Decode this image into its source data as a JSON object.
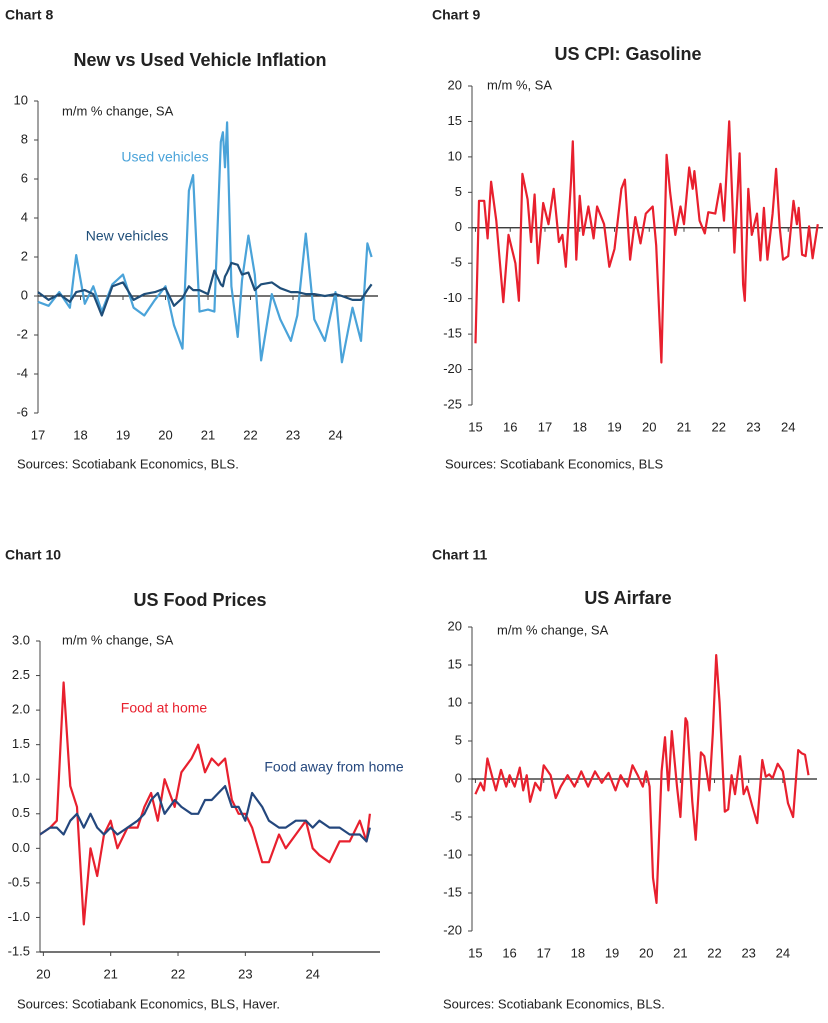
{
  "chart_data": [
    {
      "type": "line",
      "label": "Chart 8",
      "title": "New vs Used Vehicle Inflation",
      "y_label": "m/m % change, SA",
      "source": "Sources: Scotiabank Economics, BLS.",
      "x": [
        17.0,
        17.25,
        17.5,
        17.75,
        17.9,
        18.1,
        18.3,
        18.5,
        18.75,
        19.0,
        19.25,
        19.5,
        19.75,
        20.0,
        20.2,
        20.4,
        20.55,
        20.65,
        20.8,
        21.0,
        21.15,
        21.3,
        21.35,
        21.4,
        21.45,
        21.55,
        21.7,
        21.8,
        21.95,
        22.1,
        22.25,
        22.5,
        22.7,
        22.95,
        23.1,
        23.3,
        23.5,
        23.75,
        24.0,
        24.15,
        24.4,
        24.6,
        24.75,
        24.85
      ],
      "series": [
        {
          "name": "Used vehicles",
          "color": "#4aa3d9",
          "values": [
            -0.3,
            -0.5,
            0.2,
            -0.6,
            2.1,
            -0.4,
            0.5,
            -0.8,
            0.6,
            1.1,
            -0.6,
            -1.0,
            -0.2,
            0.5,
            -1.5,
            -2.7,
            5.4,
            6.2,
            -0.8,
            -0.7,
            -0.8,
            7.9,
            8.4,
            6.6,
            8.9,
            0.5,
            -2.1,
            0.8,
            3.1,
            1.1,
            -3.3,
            0.1,
            -1.2,
            -2.3,
            -1.0,
            3.2,
            -1.2,
            -2.3,
            0.2,
            -3.4,
            -0.6,
            -2.3,
            2.7,
            2.0
          ]
        },
        {
          "name": "New vehicles",
          "color": "#1f4e79",
          "values": [
            0.2,
            -0.2,
            0.1,
            -0.3,
            0.2,
            0.3,
            0.1,
            -1.0,
            0.5,
            0.7,
            -0.2,
            0.1,
            0.2,
            0.4,
            -0.5,
            -0.1,
            0.5,
            0.3,
            0.3,
            0.1,
            1.3,
            0.6,
            0.5,
            1.0,
            1.2,
            1.7,
            1.6,
            1.1,
            1.2,
            0.3,
            0.6,
            0.7,
            0.4,
            0.2,
            0.2,
            0.1,
            0.1,
            0.0,
            0.1,
            0.0,
            -0.2,
            -0.2,
            0.3,
            0.6
          ]
        }
      ],
      "xlim": [
        17,
        25
      ],
      "xticks": [
        17,
        18,
        19,
        20,
        21,
        22,
        23,
        24
      ],
      "ylim": [
        -6,
        10
      ],
      "yticks": [
        -6,
        -4,
        -2,
        0,
        2,
        4,
        6,
        8,
        10
      ],
      "zero_line": true
    },
    {
      "type": "line",
      "label": "Chart 9",
      "title": "US CPI: Gasoline",
      "y_label": "m/m %, SA",
      "source": "Sources: Scotiabank Economics, BLS",
      "x": [
        15.0,
        15.1,
        15.25,
        15.35,
        15.45,
        15.6,
        15.8,
        15.95,
        16.15,
        16.25,
        16.35,
        16.5,
        16.6,
        16.7,
        16.8,
        16.95,
        17.1,
        17.25,
        17.4,
        17.5,
        17.6,
        17.75,
        17.8,
        17.9,
        18.0,
        18.1,
        18.25,
        18.4,
        18.5,
        18.7,
        18.85,
        19.0,
        19.2,
        19.3,
        19.45,
        19.6,
        19.75,
        19.9,
        20.1,
        20.2,
        20.35,
        20.5,
        20.6,
        20.75,
        20.9,
        21.0,
        21.15,
        21.25,
        21.3,
        21.45,
        21.6,
        21.7,
        21.9,
        22.05,
        22.15,
        22.3,
        22.45,
        22.6,
        22.7,
        22.75,
        22.85,
        22.95,
        23.1,
        23.2,
        23.3,
        23.4,
        23.55,
        23.65,
        23.75,
        23.85,
        24.0,
        24.15,
        24.25,
        24.3,
        24.4,
        24.5,
        24.6,
        24.7,
        24.85
      ],
      "series": [
        {
          "name": "Gasoline",
          "color": "#e8202e",
          "values": [
            -16.3,
            3.8,
            3.8,
            -1.5,
            6.5,
            1.0,
            -10.5,
            -1.0,
            -5.0,
            -10.3,
            7.6,
            4.0,
            -2.0,
            4.7,
            -5.0,
            3.5,
            0.5,
            5.5,
            -2.0,
            -1.0,
            -5.5,
            6.5,
            12.2,
            -4.5,
            4.5,
            -1.0,
            3.0,
            -1.5,
            3.0,
            0.5,
            -5.5,
            -3.0,
            5.5,
            6.8,
            -4.5,
            1.5,
            -2.2,
            2.0,
            3.0,
            -2.5,
            -19.0,
            10.3,
            5.0,
            -1.0,
            3.0,
            0.5,
            8.5,
            5.5,
            8.0,
            1.0,
            -0.8,
            2.2,
            2.0,
            6.2,
            1.0,
            15.0,
            -3.5,
            10.5,
            -8.0,
            -10.3,
            5.5,
            -1.0,
            2.0,
            -4.6,
            2.8,
            -4.5,
            2.0,
            8.3,
            0.2,
            -4.5,
            -4.0,
            3.8,
            0.5,
            2.8,
            -3.8,
            -4.0,
            0.2,
            -4.3,
            0.5
          ]
        }
      ],
      "xlim": [
        14.9,
        25
      ],
      "xticks": [
        15,
        16,
        17,
        18,
        19,
        20,
        21,
        22,
        23,
        24
      ],
      "ylim": [
        -25,
        20
      ],
      "yticks": [
        -25,
        -20,
        -15,
        -10,
        -5,
        0,
        5,
        10,
        15,
        20
      ],
      "zero_line": true
    },
    {
      "type": "line",
      "label": "Chart 10",
      "title": "US Food Prices",
      "y_label": "m/m % change, SA",
      "source": "Sources: Scotiabank Economics, BLS, Haver.",
      "x": [
        19.95,
        20.1,
        20.2,
        20.3,
        20.4,
        20.5,
        20.6,
        20.7,
        20.8,
        20.9,
        21.0,
        21.1,
        21.25,
        21.4,
        21.5,
        21.6,
        21.7,
        21.8,
        21.95,
        22.05,
        22.2,
        22.3,
        22.4,
        22.5,
        22.6,
        22.7,
        22.8,
        22.9,
        23.0,
        23.1,
        23.25,
        23.35,
        23.5,
        23.6,
        23.75,
        23.9,
        24.0,
        24.1,
        24.25,
        24.4,
        24.55,
        24.7,
        24.8,
        24.85
      ],
      "series": [
        {
          "name": "Food at home",
          "color": "#e8202e",
          "values": [
            0.2,
            0.3,
            0.4,
            2.4,
            0.9,
            0.6,
            -1.1,
            0.0,
            -0.4,
            0.2,
            0.4,
            0.0,
            0.3,
            0.3,
            0.6,
            0.8,
            0.4,
            1.0,
            0.6,
            1.1,
            1.3,
            1.5,
            1.1,
            1.3,
            1.2,
            1.3,
            0.7,
            0.5,
            0.5,
            0.3,
            -0.2,
            -0.2,
            0.2,
            0.0,
            0.2,
            0.4,
            0.0,
            -0.1,
            -0.2,
            0.1,
            0.1,
            0.4,
            0.1,
            0.5
          ]
        },
        {
          "name": "Food away from home",
          "color": "#24477d",
          "values": [
            0.2,
            0.3,
            0.3,
            0.2,
            0.4,
            0.5,
            0.3,
            0.5,
            0.3,
            0.2,
            0.3,
            0.2,
            0.3,
            0.4,
            0.5,
            0.7,
            0.8,
            0.5,
            0.7,
            0.6,
            0.5,
            0.5,
            0.7,
            0.7,
            0.8,
            0.9,
            0.6,
            0.6,
            0.4,
            0.8,
            0.6,
            0.4,
            0.3,
            0.3,
            0.4,
            0.4,
            0.3,
            0.4,
            0.3,
            0.3,
            0.2,
            0.2,
            0.1,
            0.3
          ]
        }
      ],
      "xlim": [
        19.95,
        25
      ],
      "xticks": [
        20,
        21,
        22,
        23,
        24
      ],
      "ylim": [
        -1.5,
        3.0
      ],
      "yticks": [
        -1.5,
        {
          "value": -1.0,
          "label": "-1.0"
        },
        -0.5,
        {
          "value": 0.0,
          "label": "0.0"
        },
        0.5,
        {
          "value": 1.0,
          "label": "1.0"
        },
        1.5,
        {
          "value": 2.0,
          "label": "2.0"
        },
        2.5,
        {
          "value": 3.0,
          "label": "3.0"
        }
      ],
      "zero_line": false
    },
    {
      "type": "line",
      "label": "Chart 11",
      "title": "US Airfare",
      "y_label": "m/m % change, SA",
      "source": "Sources: Scotiabank Economics, BLS.",
      "x": [
        15.0,
        15.15,
        15.25,
        15.35,
        15.45,
        15.6,
        15.75,
        15.9,
        16.0,
        16.15,
        16.3,
        16.4,
        16.5,
        16.6,
        16.75,
        16.9,
        17.0,
        17.2,
        17.35,
        17.5,
        17.7,
        17.9,
        18.1,
        18.3,
        18.5,
        18.7,
        18.9,
        19.1,
        19.25,
        19.45,
        19.6,
        19.75,
        19.9,
        20.0,
        20.1,
        20.2,
        20.3,
        20.45,
        20.55,
        20.65,
        20.75,
        20.9,
        21.0,
        21.15,
        21.2,
        21.35,
        21.45,
        21.6,
        21.7,
        21.85,
        21.95,
        22.05,
        22.15,
        22.3,
        22.4,
        22.5,
        22.6,
        22.75,
        22.85,
        22.95,
        23.1,
        23.25,
        23.4,
        23.5,
        23.6,
        23.7,
        23.85,
        24.0,
        24.15,
        24.3,
        24.45,
        24.55,
        24.65,
        24.75
      ],
      "series": [
        {
          "name": "Airfare",
          "color": "#e8202e",
          "values": [
            -2.0,
            -0.5,
            -1.5,
            2.7,
            1.0,
            -1.5,
            1.2,
            -1.0,
            0.5,
            -1.0,
            1.5,
            -1.5,
            0.5,
            -3.0,
            -0.5,
            -1.5,
            1.8,
            0.5,
            -2.5,
            -1.0,
            0.5,
            -1.0,
            1.0,
            -1.0,
            1.0,
            -0.5,
            0.8,
            -1.5,
            0.5,
            -1.0,
            1.8,
            0.5,
            -1.0,
            1.0,
            -1.0,
            -13.0,
            -16.3,
            1.0,
            5.5,
            -1.5,
            6.3,
            -1.0,
            -5.0,
            8.0,
            7.5,
            -3.0,
            -8.0,
            3.5,
            3.0,
            -1.5,
            6.0,
            16.3,
            10.0,
            -4.3,
            -4.0,
            0.5,
            -2.0,
            3.0,
            -2.0,
            -1.0,
            -3.5,
            -5.8,
            2.5,
            0.3,
            0.6,
            0.1,
            2.0,
            1.0,
            -3.2,
            -5.0,
            3.8,
            3.4,
            3.2,
            0.5
          ]
        }
      ],
      "xlim": [
        14.9,
        25
      ],
      "xticks": [
        15,
        16,
        17,
        18,
        19,
        20,
        21,
        22,
        23,
        24
      ],
      "ylim": [
        -20,
        20
      ],
      "yticks": [
        -20,
        -15,
        -10,
        -5,
        0,
        5,
        10,
        15,
        20
      ],
      "zero_line": true
    }
  ]
}
